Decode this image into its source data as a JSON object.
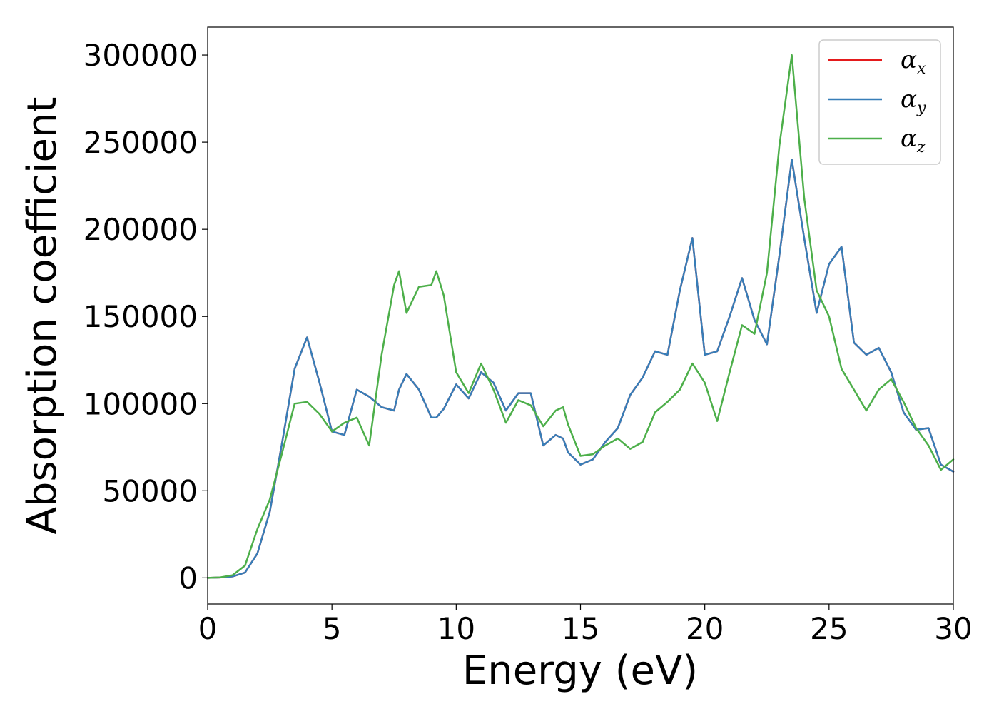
{
  "chart_data": {
    "type": "line",
    "xlabel": "Energy (eV)",
    "ylabel": "Absorption coefficient",
    "xlim": [
      0,
      30
    ],
    "ylim": [
      -15000,
      316000
    ],
    "xticks": [
      "0",
      "5",
      "10",
      "15",
      "20",
      "25",
      "30"
    ],
    "yticks": [
      "0",
      "50000",
      "100000",
      "150000",
      "200000",
      "250000",
      "300000"
    ],
    "grid": false,
    "legend_position": "top-right",
    "x": [
      0,
      0.5,
      1,
      1.5,
      2,
      2.5,
      3,
      3.5,
      4,
      4.5,
      5,
      5.5,
      6,
      6.5,
      7,
      7.5,
      7.7,
      8,
      8.5,
      9,
      9.2,
      9.5,
      10,
      10.5,
      11,
      11.5,
      12,
      12.5,
      13,
      13.5,
      14,
      14.3,
      14.5,
      15,
      15.5,
      16,
      16.5,
      17,
      17.5,
      18,
      18.5,
      19,
      19.5,
      20,
      20.5,
      21,
      21.5,
      22,
      22.5,
      23,
      23.5,
      24,
      24.5,
      25,
      25.5,
      26,
      26.5,
      27,
      27.5,
      28,
      28.5,
      29,
      29.5,
      30
    ],
    "series": [
      {
        "name": "α",
        "subscript": "x",
        "color": "#e41a1c",
        "values": [
          0,
          200,
          800,
          3000,
          14000,
          38000,
          78000,
          120000,
          138000,
          112000,
          84000,
          82000,
          108000,
          104000,
          98000,
          96000,
          108000,
          117000,
          108000,
          92000,
          92000,
          97000,
          111000,
          103000,
          118000,
          112000,
          96000,
          106000,
          106000,
          76000,
          82000,
          80000,
          72000,
          65000,
          68000,
          78000,
          86000,
          105000,
          115000,
          130000,
          128000,
          165000,
          195000,
          128000,
          130000,
          150000,
          172000,
          148000,
          134000,
          185000,
          240000,
          195000,
          152000,
          180000,
          190000,
          135000,
          128000,
          132000,
          118000,
          95000,
          85000,
          86000,
          65000,
          61000
        ]
      },
      {
        "name": "α",
        "subscript": "y",
        "color": "#377eb8",
        "values": [
          0,
          200,
          800,
          3000,
          14000,
          38000,
          78000,
          120000,
          138000,
          112000,
          84000,
          82000,
          108000,
          104000,
          98000,
          96000,
          108000,
          117000,
          108000,
          92000,
          92000,
          97000,
          111000,
          103000,
          118000,
          112000,
          96000,
          106000,
          106000,
          76000,
          82000,
          80000,
          72000,
          65000,
          68000,
          78000,
          86000,
          105000,
          115000,
          130000,
          128000,
          165000,
          195000,
          128000,
          130000,
          150000,
          172000,
          148000,
          134000,
          185000,
          240000,
          195000,
          152000,
          180000,
          190000,
          135000,
          128000,
          132000,
          118000,
          95000,
          85000,
          86000,
          65000,
          61000
        ]
      },
      {
        "name": "α",
        "subscript": "z",
        "color": "#4daf4a",
        "values": [
          0,
          300,
          1500,
          7000,
          28000,
          45000,
          72000,
          100000,
          101000,
          94000,
          84000,
          89000,
          92000,
          76000,
          128000,
          168000,
          176000,
          152000,
          167000,
          168000,
          176000,
          162000,
          118000,
          106000,
          123000,
          108000,
          89000,
          102000,
          99000,
          87000,
          96000,
          98000,
          88000,
          70000,
          71000,
          76000,
          80000,
          74000,
          78000,
          95000,
          101000,
          108000,
          123000,
          112000,
          90000,
          118000,
          145000,
          140000,
          175000,
          248000,
          300000,
          218000,
          165000,
          150000,
          120000,
          108000,
          96000,
          108000,
          114000,
          101000,
          86000,
          76000,
          62000,
          68000
        ]
      }
    ]
  }
}
